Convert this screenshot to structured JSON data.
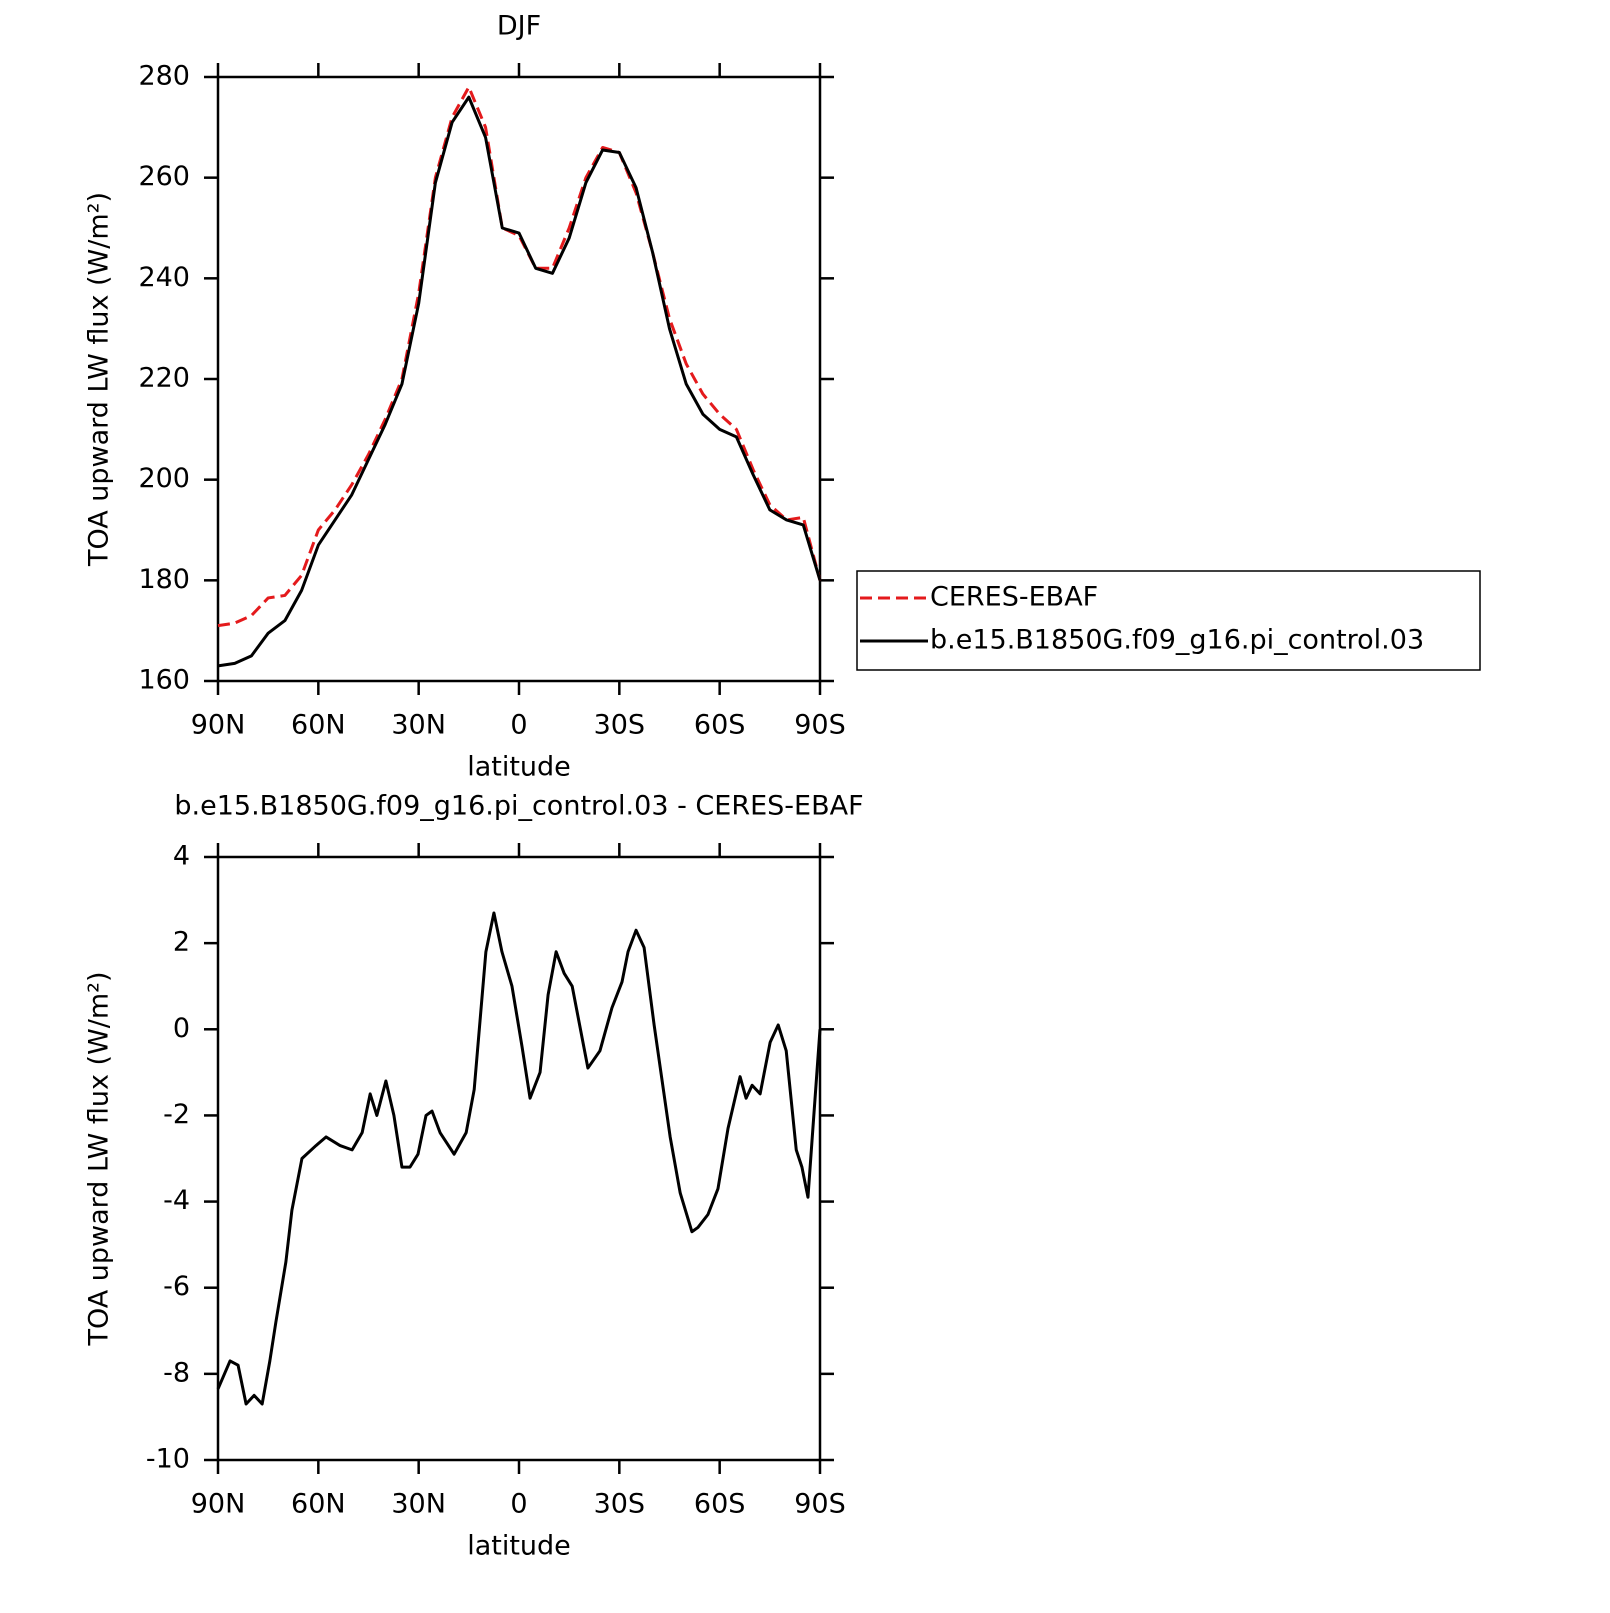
{
  "chart_data": [
    {
      "type": "line",
      "title": "DJF",
      "x_label": "latitude",
      "y_label": "TOA upward LW flux (W/m²)",
      "x": [
        90,
        85,
        80,
        75,
        70,
        65,
        60,
        55,
        50,
        45,
        40,
        35,
        30,
        25,
        20,
        15,
        10,
        5,
        0,
        -5,
        -10,
        -15,
        -20,
        -25,
        -30,
        -35,
        -40,
        -45,
        -50,
        -55,
        -60,
        -65,
        -70,
        -75,
        -80,
        -85,
        -90
      ],
      "series": [
        {
          "name": "CERES-EBAF",
          "color": "#e41a1c",
          "line_style": "dashed",
          "values": [
            171,
            171.5,
            173,
            176.5,
            177,
            181,
            190,
            194,
            199,
            205,
            212,
            220,
            237,
            260,
            272,
            278,
            270,
            250,
            248.5,
            242,
            242,
            250,
            260,
            266,
            265,
            257,
            245,
            232,
            223,
            217,
            213,
            210,
            202,
            195,
            192,
            192.5,
            180
          ]
        },
        {
          "name": "b.e15.B1850G.f09_g16.pi_control.03",
          "color": "#000000",
          "line_style": "solid",
          "values": [
            163,
            163.5,
            165,
            169.5,
            172,
            178,
            187,
            192,
            197,
            204,
            211,
            219,
            235,
            259,
            271,
            276,
            268,
            250,
            249,
            242,
            241,
            248,
            259,
            265.5,
            265,
            258,
            245,
            230,
            219,
            213,
            210,
            208.5,
            201,
            194,
            192,
            191,
            180
          ]
        }
      ],
      "xlim": [
        90,
        -90
      ],
      "xticks": [
        {
          "value": 90,
          "label": "90N"
        },
        {
          "value": 60,
          "label": "60N"
        },
        {
          "value": 30,
          "label": "30N"
        },
        0,
        {
          "value": -30,
          "label": "30S"
        },
        {
          "value": -60,
          "label": "60S"
        },
        {
          "value": -90,
          "label": "90S"
        }
      ],
      "ylim": [
        160,
        280
      ],
      "yticks": [
        160,
        180,
        200,
        220,
        240,
        260,
        280
      ],
      "legend": "right"
    },
    {
      "type": "line",
      "title": "b.e15.B1850G.f09_g16.pi_control.03 - CERES-EBAF",
      "x_label": "latitude",
      "y_label": "TOA upward LW flux (W/m²)",
      "x": [
        90,
        86.4,
        84,
        81.6,
        79.2,
        76.8,
        74.5,
        72.7,
        69.7,
        67.9,
        64.9,
        60.7,
        57.7,
        53.5,
        49.9,
        46.9,
        44.5,
        42.5,
        39.8,
        37.4,
        35,
        32.6,
        30.2,
        27.8,
        26,
        23.6,
        19.4,
        15.8,
        13.4,
        9.9,
        7.5,
        5.1,
        2.1,
        -0.9,
        -3.3,
        -6.3,
        -8.7,
        -11.1,
        -13.5,
        -15.9,
        -20.6,
        -24.2,
        -27.8,
        -30.8,
        -32.6,
        -35,
        -37.4,
        -40.4,
        -45.2,
        -48.2,
        -51.7,
        -53.5,
        -56.5,
        -59.5,
        -62.5,
        -66.1,
        -67.9,
        -69.7,
        -72.1,
        -75.1,
        -77.5,
        -79.9,
        -82.9,
        -84.6,
        -86.4,
        -90
      ],
      "series": [
        {
          "color": "#000000",
          "line_style": "solid",
          "values": [
            -8.35,
            -7.7,
            -7.8,
            -8.7,
            -8.5,
            -8.7,
            -7.7,
            -6.8,
            -5.4,
            -4.2,
            -3.0,
            -2.7,
            -2.5,
            -2.7,
            -2.8,
            -2.4,
            -1.5,
            -2.0,
            -1.2,
            -2.0,
            -3.2,
            -3.2,
            -2.9,
            -2.0,
            -1.9,
            -2.4,
            -2.9,
            -2.4,
            -1.4,
            1.8,
            2.7,
            1.8,
            1.0,
            -0.4,
            -1.6,
            -1.0,
            0.8,
            1.8,
            1.3,
            1.0,
            -0.9,
            -0.5,
            0.5,
            1.1,
            1.8,
            2.3,
            1.9,
            0.1,
            -2.5,
            -3.8,
            -4.7,
            -4.6,
            -4.3,
            -3.7,
            -2.3,
            -1.1,
            -1.6,
            -1.3,
            -1.5,
            -0.3,
            0.1,
            -0.5,
            -2.8,
            -3.2,
            -3.9,
            0
          ]
        }
      ],
      "xlim": [
        90,
        -90
      ],
      "xticks": [
        {
          "value": 90,
          "label": "90N"
        },
        {
          "value": 60,
          "label": "60N"
        },
        {
          "value": 30,
          "label": "30N"
        },
        0,
        {
          "value": -30,
          "label": "30S"
        },
        {
          "value": -60,
          "label": "60S"
        },
        {
          "value": -90,
          "label": "90S"
        }
      ],
      "ylim": [
        -10,
        4
      ],
      "yticks": [
        -10,
        -8,
        -6,
        -4,
        -2,
        0,
        2,
        4
      ]
    }
  ]
}
